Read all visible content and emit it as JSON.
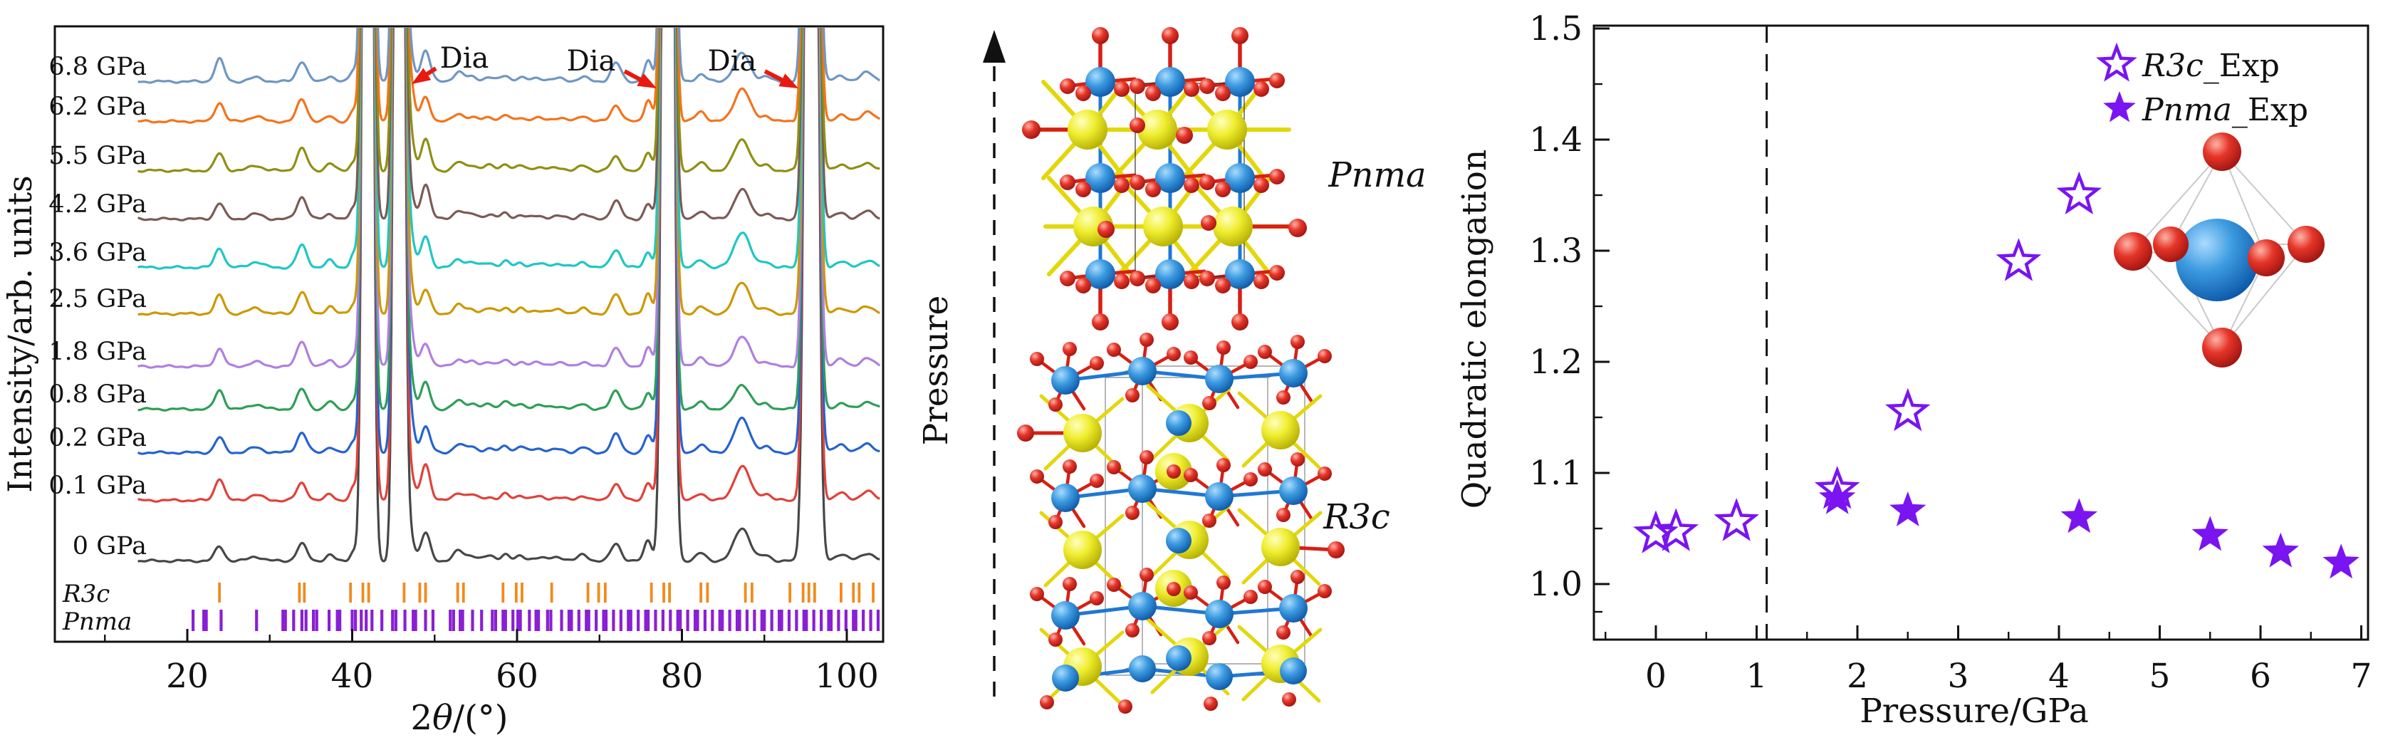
{
  "chart_data": [
    {
      "type": "line",
      "panel": "xrd-patterns",
      "title": "",
      "xlabel": "2θ/(°)",
      "ylabel": "Intensity/arb. units",
      "xlim": [
        4,
        104
      ],
      "x_ticks": [
        20,
        40,
        60,
        80,
        100
      ],
      "x_minor_ticks": [
        10,
        30,
        50,
        70,
        90
      ],
      "grid": false,
      "series": [
        {
          "label": "0 GPa",
          "color": "#474747"
        },
        {
          "label": "0.1 GPa",
          "color": "#e0413a"
        },
        {
          "label": "0.2 GPa",
          "color": "#2563cf"
        },
        {
          "label": "0.8 GPa",
          "color": "#2f9e57"
        },
        {
          "label": "1.8 GPa",
          "color": "#b07fe0"
        },
        {
          "label": "2.5 GPa",
          "color": "#cc9900"
        },
        {
          "label": "3.6 GPa",
          "color": "#1ec6c6"
        },
        {
          "label": "4.2 GPa",
          "color": "#7c5a56"
        },
        {
          "label": "5.5 GPa",
          "color": "#8f8f13"
        },
        {
          "label": "6.2 GPa",
          "color": "#f4731c"
        },
        {
          "label": "6.8 GPa",
          "color": "#6e97c4"
        }
      ],
      "peaks": [
        [
          23.9,
          26,
          0.55
        ],
        [
          28.3,
          7,
          0.8
        ],
        [
          33.9,
          30,
          0.6
        ],
        [
          37.3,
          9,
          0.5
        ],
        [
          40.2,
          16,
          0.42
        ],
        [
          41.9,
          3000,
          0.45
        ],
        [
          45.7,
          3000,
          0.45
        ],
        [
          46.9,
          55,
          0.5
        ],
        [
          48.9,
          42,
          0.55
        ],
        [
          52.9,
          12,
          0.6
        ],
        [
          54.5,
          7,
          0.6
        ],
        [
          56.6,
          6,
          0.7
        ],
        [
          58.6,
          10,
          0.5
        ],
        [
          60.4,
          7,
          0.5
        ],
        [
          62.5,
          5,
          0.8
        ],
        [
          65.0,
          5,
          0.8
        ],
        [
          68.0,
          7,
          0.6
        ],
        [
          72.0,
          22,
          0.6
        ],
        [
          75.9,
          26,
          0.45
        ],
        [
          78.3,
          3000,
          0.5
        ],
        [
          82.3,
          12,
          0.6
        ],
        [
          87.3,
          42,
          0.95
        ],
        [
          90.2,
          8,
          0.6
        ],
        [
          95.7,
          3000,
          0.55
        ],
        [
          99.3,
          10,
          0.7
        ],
        [
          102.5,
          12,
          0.8
        ]
      ],
      "diamond_annotations": [
        {
          "label": "Dia",
          "peak_x": 46.9
        },
        {
          "label": "Dia",
          "peak_x": 78.3
        },
        {
          "label": "Dia",
          "peak_x": 95.7
        }
      ],
      "annotation_color": "#e8190f",
      "reference_tick_rows": [
        {
          "label": "R3c",
          "color": "#f08b1d",
          "positions": [
            23.9,
            33.6,
            34.2,
            39.8,
            41.3,
            42.0,
            46.3,
            48.2,
            48.9,
            52.8,
            53.5,
            58.3,
            59.9,
            60.6,
            64.2,
            68.6,
            69.9,
            70.7,
            76.3,
            77.8,
            78.5,
            82.3,
            83.1,
            87.7,
            88.5,
            93.1,
            94.7,
            95.4,
            96.1,
            99.3,
            100.8,
            101.5,
            103.2
          ]
        },
        {
          "label": "Pnma",
          "color": "#8a1fd4",
          "positions": [
            20.7,
            22.0,
            22.3,
            24.1,
            28.4,
            31.6,
            31.9,
            32.9,
            33.9,
            34.4,
            35.3,
            35.7,
            37.2,
            38.2,
            38.5,
            40.0,
            40.4,
            41.1,
            41.7,
            42.4,
            43.6,
            44.9,
            45.3,
            46.4,
            47.4,
            47.7,
            48.9,
            49.8,
            51.9,
            52.3,
            53.1,
            53.4,
            54.6,
            55.7,
            57.0,
            57.4,
            58.3,
            58.6,
            59.5,
            60.1,
            60.4,
            61.5,
            62.3,
            62.6,
            63.7,
            64.1,
            65.4,
            66.3,
            66.6,
            67.5,
            68.4,
            68.7,
            69.6,
            70.5,
            70.8,
            71.7,
            72.6,
            73.5,
            73.8,
            74.7,
            75.6,
            75.9,
            76.8,
            77.7,
            78.6,
            79.5,
            79.8,
            80.7,
            81.6,
            81.9,
            82.8,
            83.7,
            84.6,
            84.9,
            85.8,
            86.7,
            87.0,
            87.9,
            88.8,
            89.7,
            90.0,
            90.9,
            91.8,
            92.1,
            93.0,
            93.9,
            94.8,
            95.1,
            96.0,
            96.9,
            97.8,
            98.1,
            99.0,
            99.9,
            100.8,
            101.1,
            102.0,
            102.9,
            103.8
          ]
        }
      ]
    },
    {
      "type": "scatter",
      "panel": "quadratic-elongation",
      "title": "",
      "xlabel": "Pressure/GPa",
      "ylabel": "Quadratic elongation",
      "xlim": [
        -0.65,
        7.05
      ],
      "ylim": [
        0.95,
        1.5
      ],
      "x_ticks": [
        0,
        1,
        2,
        3,
        4,
        5,
        6,
        7
      ],
      "y_ticks": [
        1.0,
        1.1,
        1.2,
        1.3,
        1.4,
        1.5
      ],
      "grid": false,
      "dashed_line_x": 1.1,
      "marker_color": "#7a14f0",
      "legend_position": "upper-right",
      "series": [
        {
          "name": "R3c_Exp",
          "name_italic": "R3c",
          "name_suffix": "_Exp",
          "marker": "open-star",
          "points": [
            [
              0,
              1.045
            ],
            [
              0.2,
              1.047
            ],
            [
              0.8,
              1.056
            ],
            [
              1.8,
              1.085
            ],
            [
              2.5,
              1.155
            ],
            [
              3.6,
              1.29
            ],
            [
              4.2,
              1.35
            ]
          ]
        },
        {
          "name": "Pnma_Exp",
          "name_italic": "Pnma",
          "name_suffix": "_Exp",
          "marker": "filled-star",
          "points": [
            [
              1.8,
              1.077
            ],
            [
              2.5,
              1.066
            ],
            [
              4.2,
              1.06
            ],
            [
              5.5,
              1.044
            ],
            [
              6.2,
              1.029
            ],
            [
              6.8,
              1.019
            ]
          ]
        }
      ],
      "inset": {
        "description": "BO6 octahedron",
        "center_atom_color": "#1f78d4",
        "vertex_atom_color": "#e02020"
      }
    }
  ],
  "middle_panel": {
    "axis_label": "Pressure",
    "structures": [
      {
        "label": "Pnma",
        "position": "top"
      },
      {
        "label": "R3c",
        "position": "bottom"
      }
    ],
    "atom_colors": {
      "a_site": "#e8e012",
      "b_site": "#1f78d4",
      "oxygen": "#e02020"
    }
  }
}
